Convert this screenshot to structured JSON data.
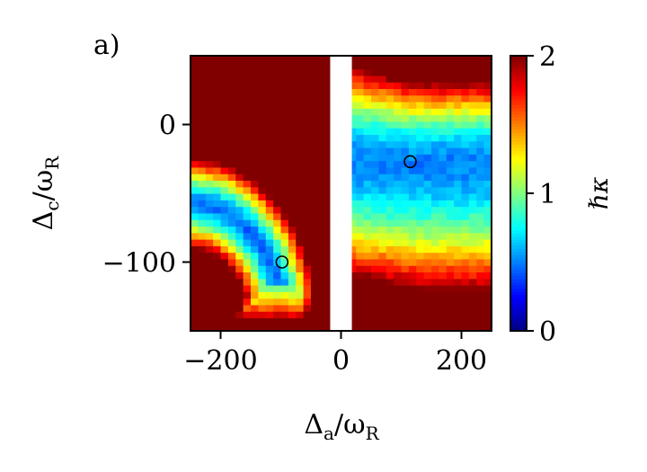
{
  "panel_label": "a)",
  "chart_data": {
    "type": "heatmap",
    "xlabel_base": "Δ",
    "xlabel_sub": "a",
    "xlabel_div": "/ω",
    "xlabel_sub2": "R",
    "ylabel_base": "Δ",
    "ylabel_sub": "c",
    "ylabel_div": "/ω",
    "ylabel_sub2": "R",
    "xlim": [
      -250,
      250
    ],
    "ylim": [
      -150,
      50
    ],
    "xticks": [
      {
        "value": -200,
        "label": "−200"
      },
      {
        "value": 0,
        "label": "0"
      },
      {
        "value": 200,
        "label": "200"
      }
    ],
    "yticks": [
      {
        "value": 0,
        "label": "0"
      },
      {
        "value": -100,
        "label": "−100"
      }
    ],
    "colorbar": {
      "label_prefix": "ℏ",
      "label_symbol": "κ",
      "range": [
        0,
        2
      ],
      "ticks": [
        {
          "value": 0,
          "label": "0"
        },
        {
          "value": 1,
          "label": "1"
        },
        {
          "value": 2,
          "label": "2"
        }
      ],
      "colormap": "jet"
    },
    "gap_x": [
      -18,
      18
    ],
    "left_region": {
      "x_range": [
        -250,
        -18
      ],
      "description": "values by distance from corner (-250,-150) along boundary arc",
      "band_y_range": [
        -150,
        -22
      ],
      "min_value": 0.45,
      "min_point": [
        -98,
        -100
      ]
    },
    "right_region": {
      "x_range": [
        18,
        250
      ],
      "band_y_range": [
        -120,
        30
      ],
      "min_value": 0.5,
      "min_point": [
        115,
        -27
      ]
    },
    "markers": [
      {
        "x": -98,
        "y": -100
      },
      {
        "x": 115,
        "y": -27
      }
    ],
    "saturation_value": 2.0
  }
}
